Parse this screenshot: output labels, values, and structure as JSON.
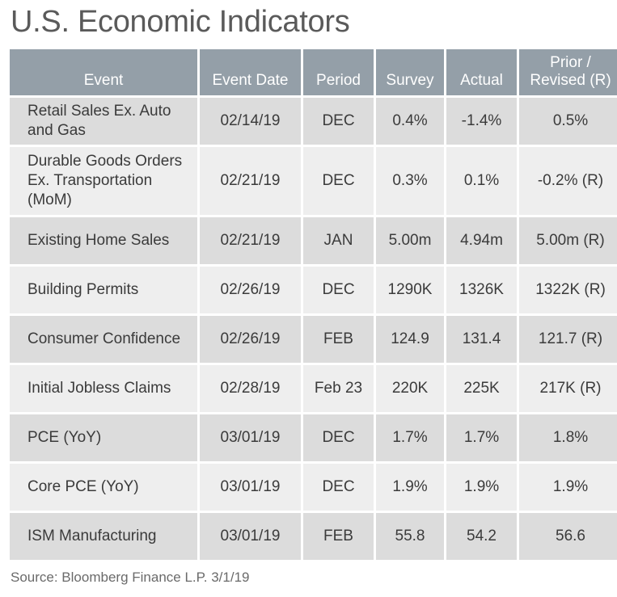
{
  "title": "U.S. Economic Indicators",
  "columns": {
    "event": "Event",
    "event_date": "Event Date",
    "period": "Period",
    "survey": "Survey",
    "actual": "Actual",
    "prior_line1": "Prior /",
    "prior_line2": "Revised (R)"
  },
  "rows": [
    {
      "event": "Retail Sales Ex. Auto and Gas",
      "date": "02/14/19",
      "period": "DEC",
      "survey": "0.4%",
      "actual": "-1.4%",
      "prior": "0.5%"
    },
    {
      "event": "Durable Goods Orders Ex. Transportation (MoM)",
      "date": "02/21/19",
      "period": "DEC",
      "survey": "0.3%",
      "actual": "0.1%",
      "prior": "-0.2% (R)"
    },
    {
      "event": "Existing Home Sales",
      "date": "02/21/19",
      "period": "JAN",
      "survey": "5.00m",
      "actual": "4.94m",
      "prior": "5.00m (R)"
    },
    {
      "event": "Building Permits",
      "date": "02/26/19",
      "period": "DEC",
      "survey": "1290K",
      "actual": "1326K",
      "prior": "1322K (R)"
    },
    {
      "event": "Consumer Confidence",
      "date": "02/26/19",
      "period": "FEB",
      "survey": "124.9",
      "actual": "131.4",
      "prior": "121.7 (R)"
    },
    {
      "event": "Initial Jobless Claims",
      "date": "02/28/19",
      "period": "Feb 23",
      "survey": "220K",
      "actual": "225K",
      "prior": "217K (R)"
    },
    {
      "event": "PCE (YoY)",
      "date": "03/01/19",
      "period": "DEC",
      "survey": "1.7%",
      "actual": "1.7%",
      "prior": "1.8%"
    },
    {
      "event": "Core PCE (YoY)",
      "date": "03/01/19",
      "period": "DEC",
      "survey": "1.9%",
      "actual": "1.9%",
      "prior": "1.9%"
    },
    {
      "event": "ISM Manufacturing",
      "date": "03/01/19",
      "period": "FEB",
      "survey": "55.8",
      "actual": "54.2",
      "prior": "56.6"
    }
  ],
  "source": "Source: Bloomberg Finance L.P. 3/1/19"
}
